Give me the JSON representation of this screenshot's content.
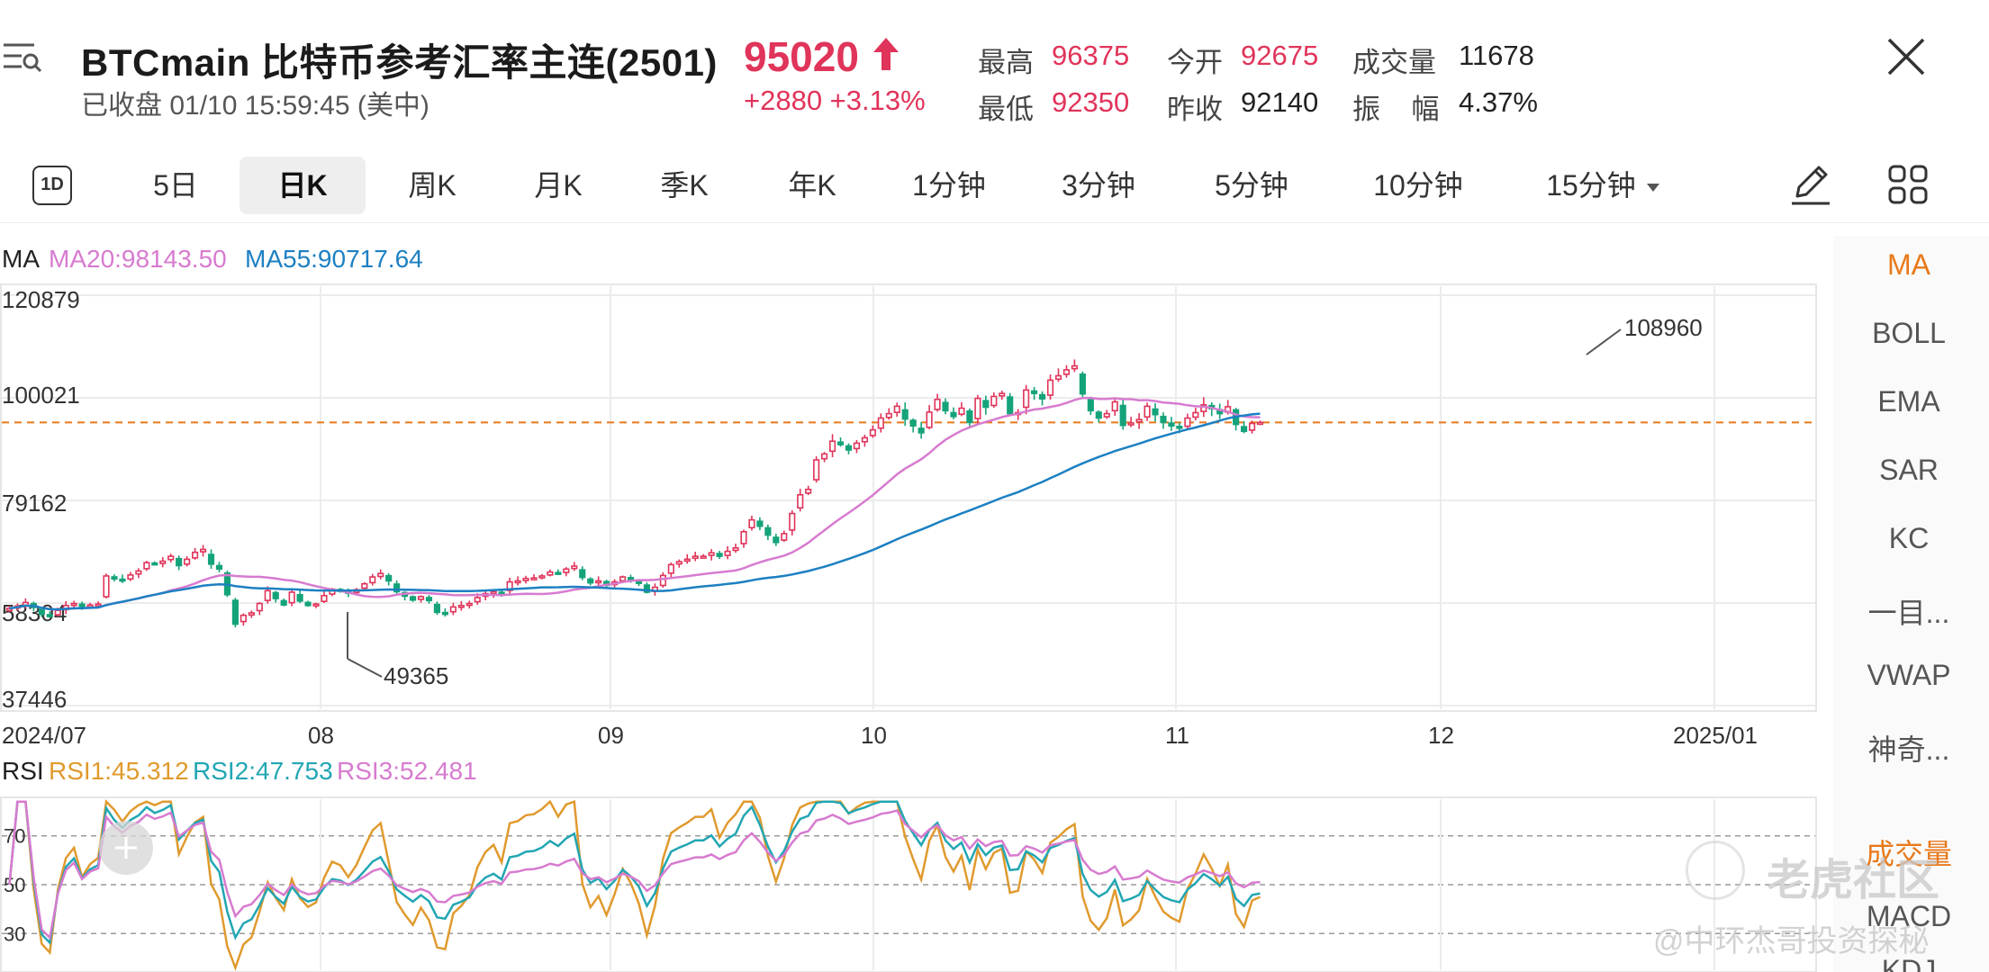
{
  "header": {
    "title": "BTCmain  比特币参考汇率主连(2501)",
    "status": "已收盘 01/10 15:59:45 (美中)",
    "price": "95020",
    "change": "+2880 +3.13%",
    "stats": [
      {
        "label": "最高",
        "value": "96375"
      },
      {
        "label": "今开",
        "value": "92675"
      },
      {
        "label": "成交量",
        "value": "11678"
      },
      {
        "label": "最低",
        "value": "92350"
      },
      {
        "label": "昨收",
        "value": "92140"
      },
      {
        "label": "振    幅",
        "value": "4.37%"
      }
    ],
    "colors": {
      "up": "#e0345a",
      "down": "#15a37a",
      "accent": "#e8791a"
    }
  },
  "tabs": {
    "period_1d": "1D",
    "items": [
      "5日",
      "日K",
      "周K",
      "月K",
      "季K",
      "年K",
      "1分钟",
      "3分钟",
      "5分钟",
      "10分钟",
      "15分钟"
    ],
    "active": "日K"
  },
  "side_indicators": [
    "MA",
    "BOLL",
    "EMA",
    "SAR",
    "KC",
    "一目...",
    "VWAP",
    "神奇...",
    "成交量",
    "MACD",
    "KDJ"
  ],
  "watermark": {
    "brand": "老虎社区",
    "author": "@中环杰哥投资探秘"
  },
  "chart_data": [
    {
      "type": "candlestick",
      "title": "MA",
      "legend": {
        "ma20": "MA20:98143.50",
        "ma55": "MA55:90717.64"
      },
      "y_ticks": [
        "120879",
        "100021",
        "79162",
        "58304",
        "37446"
      ],
      "ylim": [
        37446,
        120879
      ],
      "x_ticks": [
        "2024/07",
        "08",
        "09",
        "10",
        "11",
        "12",
        "2025/01"
      ],
      "annotations": {
        "high": "108960",
        "low": "49365"
      },
      "last_price": 95020,
      "closes": [
        57200,
        57700,
        58400,
        57400,
        56000,
        55600,
        56800,
        57800,
        58200,
        57500,
        57900,
        58100,
        63800,
        63200,
        62800,
        64000,
        64800,
        66500,
        66200,
        66800,
        67800,
        65900,
        67200,
        68600,
        69200,
        66200,
        65200,
        60000,
        54000,
        55800,
        56300,
        58200,
        60800,
        59200,
        57900,
        60500,
        58700,
        57800,
        58100,
        59800,
        61100,
        60900,
        60300,
        61000,
        62200,
        63600,
        64300,
        62800,
        60600,
        59700,
        58900,
        59600,
        58800,
        56400,
        56200,
        57500,
        57800,
        58200,
        59400,
        60200,
        60600,
        60100,
        62600,
        62800,
        63300,
        63400,
        63800,
        64600,
        64300,
        65200,
        65800,
        63500,
        62400,
        62800,
        61900,
        62600,
        63600,
        63100,
        62300,
        60500,
        61500,
        63900,
        66100,
        66700,
        67200,
        67800,
        67800,
        68500,
        67800,
        68800,
        69500,
        72800,
        75200,
        73900,
        72100,
        70600,
        72400,
        76500,
        80300,
        81400,
        87400,
        88600,
        91200,
        90500,
        89400,
        90800,
        91900,
        93500,
        95900,
        96800,
        98300,
        95700,
        94300,
        92900,
        97100,
        99700,
        97400,
        96200,
        97900,
        95000,
        99900,
        98100,
        100300,
        100900,
        96800,
        97000,
        101600,
        100900,
        99800,
        103600,
        104500,
        105700,
        106500,
        100800,
        97400,
        95900,
        96800,
        99200,
        94400,
        94900,
        95600,
        98300,
        96600,
        95000,
        94300,
        93900,
        95900,
        97000,
        98600,
        97800,
        96800,
        98200,
        94600,
        93200,
        94800,
        95020
      ]
    },
    {
      "type": "line",
      "title": "RSI",
      "legend": {
        "rsi1": "RSI1:45.312",
        "rsi2": "RSI2:47.753",
        "rsi3": "RSI3:52.481"
      },
      "y_ticks": [
        "70",
        "50",
        "30"
      ],
      "ylim": [
        15,
        85
      ]
    }
  ]
}
